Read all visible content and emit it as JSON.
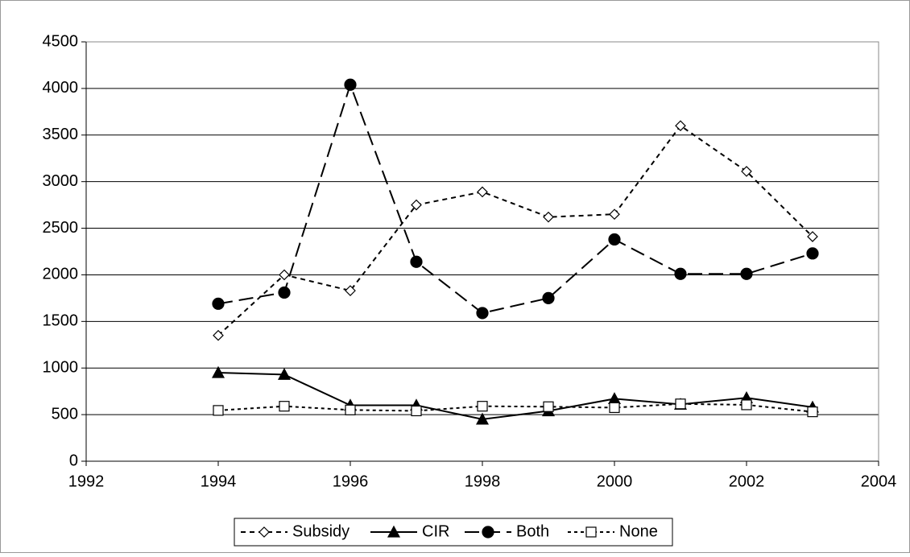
{
  "chart_data": {
    "type": "line",
    "x": [
      1994,
      1995,
      1996,
      1997,
      1998,
      1999,
      2000,
      2001,
      2002,
      2003
    ],
    "series": [
      {
        "name": "Subsidy",
        "color": "#000000",
        "values": [
          1350,
          2000,
          1830,
          2750,
          2890,
          2620,
          2650,
          3600,
          3110,
          2410
        ]
      },
      {
        "name": "CIR",
        "color": "#000000",
        "values": [
          950,
          930,
          600,
          600,
          450,
          540,
          670,
          610,
          680,
          580
        ]
      },
      {
        "name": "Both",
        "color": "#000000",
        "values": [
          1690,
          1810,
          4040,
          2140,
          1590,
          1750,
          2380,
          2010,
          2010,
          2230
        ]
      },
      {
        "name": "None",
        "color": "#000000",
        "values": [
          545,
          590,
          550,
          540,
          590,
          585,
          575,
          615,
          605,
          530
        ]
      }
    ],
    "xlim": [
      1992,
      2004
    ],
    "xticks": [
      1992,
      1994,
      1996,
      1998,
      2000,
      2002,
      2004
    ],
    "ylim": [
      0,
      4500
    ],
    "yticks": [
      0,
      500,
      1000,
      1500,
      2000,
      2500,
      3000,
      3500,
      4000,
      4500
    ],
    "grid": true,
    "legend": "bottom"
  }
}
